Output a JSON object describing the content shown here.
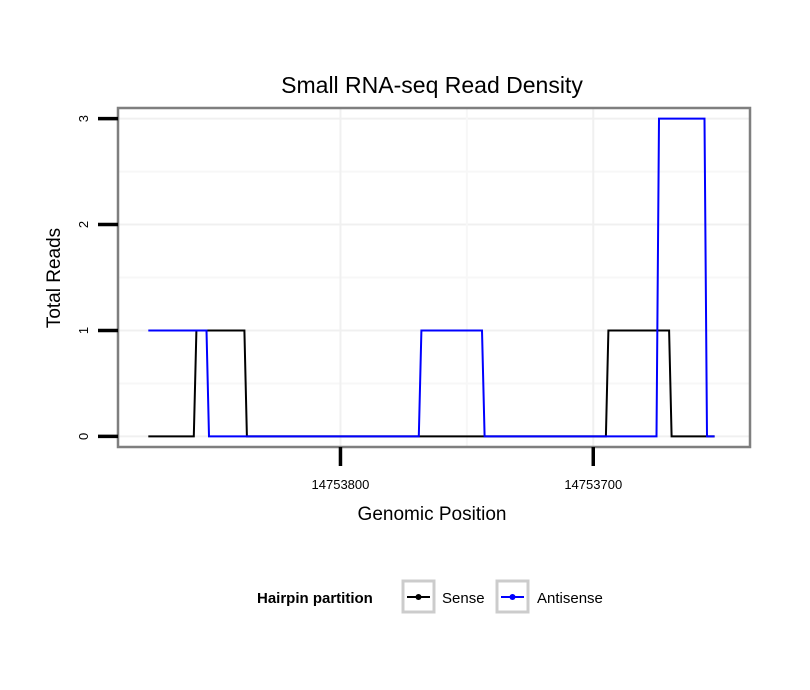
{
  "chart_data": {
    "type": "line",
    "title": "Small RNA-seq Read Density",
    "xlabel": "Genomic Position",
    "ylabel": "Total Reads",
    "x_reversed": true,
    "xlim": [
      14753888,
      14753638
    ],
    "ylim": [
      -0.1,
      3.1
    ],
    "x_ticks": [
      14753800,
      14753700
    ],
    "x_tick_labels": [
      "14753800",
      "14753700"
    ],
    "y_ticks": [
      0,
      1,
      2,
      3
    ],
    "y_tick_labels": [
      "0",
      "1",
      "2",
      "3"
    ],
    "grid": true,
    "legend": {
      "title": "Hairpin partition",
      "position": "bottom"
    },
    "series": [
      {
        "name": "Sense",
        "color": "#000000",
        "x": [
          14753876,
          14753858,
          14753857,
          14753838,
          14753837,
          14753695,
          14753694,
          14753670,
          14753669,
          14753652
        ],
        "values": [
          0,
          0,
          1,
          1,
          0,
          0,
          1,
          1,
          0,
          0
        ]
      },
      {
        "name": "Antisense",
        "color": "#0000ff",
        "x": [
          14753876,
          14753853,
          14753852,
          14753838,
          14753837,
          14753769,
          14753768,
          14753744,
          14753743,
          14753675,
          14753674,
          14753656,
          14753655,
          14753652
        ],
        "values": [
          1,
          1,
          0,
          0,
          0,
          0,
          1,
          1,
          0,
          0,
          3,
          3,
          0,
          0
        ]
      }
    ]
  }
}
